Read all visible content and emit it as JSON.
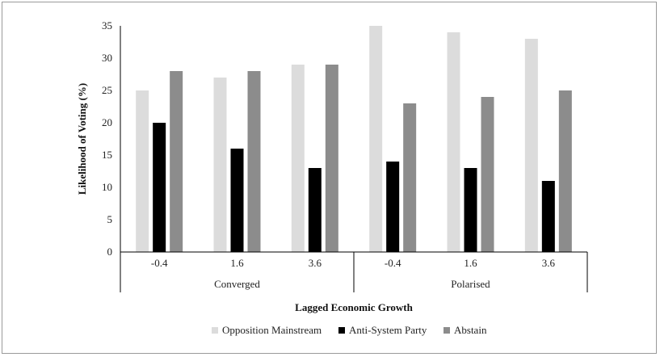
{
  "chart_data": {
    "type": "bar",
    "title": "",
    "ylabel": "Likelihood of Voting (%)",
    "xlabel": "Lagged Economic Growth",
    "ylim": [
      0,
      35
    ],
    "yticks": [
      0,
      5,
      10,
      15,
      20,
      25,
      30,
      35
    ],
    "groups": [
      {
        "label": "Converged",
        "categories": [
          "-0.4",
          "1.6",
          "3.6"
        ]
      },
      {
        "label": "Polarised",
        "categories": [
          "-0.4",
          "1.6",
          "3.6"
        ]
      }
    ],
    "categories": [
      "-0.4",
      "1.6",
      "3.6",
      "-0.4",
      "1.6",
      "3.6"
    ],
    "series": [
      {
        "name": "Opposition Mainstream",
        "color": "#dcdcdc",
        "values": [
          25,
          27,
          29,
          35,
          34,
          33
        ]
      },
      {
        "name": "Anti-System Party",
        "color": "#000000",
        "values": [
          20,
          16,
          13,
          14,
          13,
          11
        ]
      },
      {
        "name": "Abstain",
        "color": "#8c8c8c",
        "values": [
          28,
          28,
          29,
          23,
          24,
          25
        ]
      }
    ],
    "grid": false,
    "legend": "bottom"
  }
}
